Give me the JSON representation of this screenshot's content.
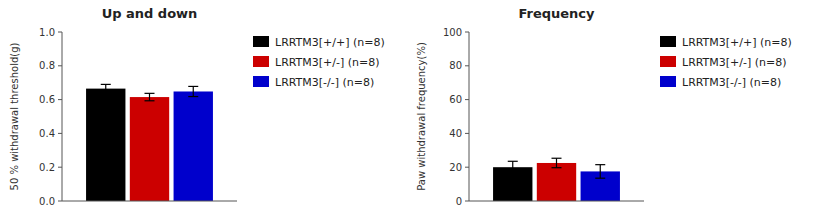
{
  "chart_data": [
    {
      "type": "bar",
      "title": "Up and down",
      "ylabel": "50 % withdrawal threshold(g)",
      "categories": [
        null
      ],
      "series": [
        {
          "name": "LRRTM3[+/+] (n=8)",
          "color": "#000000",
          "values": [
            0.665
          ],
          "errors": [
            0.025
          ]
        },
        {
          "name": "LRRTM3[+/-] (n=8)",
          "color": "#cc0000",
          "values": [
            0.615
          ],
          "errors": [
            0.022
          ]
        },
        {
          "name": "LRRTM3[-/-] (n=8)",
          "color": "#0000cc",
          "values": [
            0.648
          ],
          "errors": [
            0.03
          ]
        }
      ],
      "ylim": [
        0,
        1.0
      ],
      "yticks": [
        {
          "value": 0,
          "label": "0.0"
        },
        0.2,
        0.4,
        0.6,
        0.8,
        {
          "value": 1,
          "label": "1.0"
        }
      ],
      "tick_labels": "y",
      "legend": "right"
    },
    {
      "type": "bar",
      "title": "Frequency",
      "ylabel": "Paw withdrawal frequency(%)",
      "categories": [
        null
      ],
      "series": [
        {
          "name": "LRRTM3[+/+] (n=8)",
          "color": "#000000",
          "values": [
            20.0
          ],
          "errors": [
            3.5
          ]
        },
        {
          "name": "LRRTM3[+/-] (n=8)",
          "color": "#cc0000",
          "values": [
            22.5
          ],
          "errors": [
            2.8
          ]
        },
        {
          "name": "LRRTM3[-/-] (n=8)",
          "color": "#0000cc",
          "values": [
            17.5
          ],
          "errors": [
            4.0
          ]
        }
      ],
      "ylim": [
        0,
        100
      ],
      "yticks": [
        0,
        20,
        40,
        60,
        80,
        100
      ],
      "tick_labels": "y",
      "legend": "right"
    }
  ]
}
